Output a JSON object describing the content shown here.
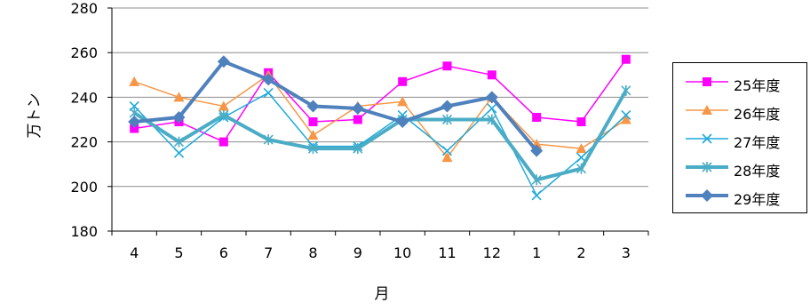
{
  "chart_data": {
    "type": "line",
    "title": "",
    "xlabel": "月",
    "ylabel": "万トン",
    "categories": [
      "4",
      "5",
      "6",
      "7",
      "8",
      "9",
      "10",
      "11",
      "12",
      "1",
      "2",
      "3"
    ],
    "ylim": [
      180,
      280
    ],
    "yticks": [
      180,
      200,
      220,
      240,
      260,
      280
    ],
    "grid": "horizontal",
    "legend_position": "right",
    "series": [
      {
        "name": "25年度",
        "color": "#ff00ff",
        "marker": "square",
        "width": 1.5,
        "values": [
          226,
          229,
          220,
          251,
          229,
          230,
          247,
          254,
          250,
          231,
          229,
          257
        ]
      },
      {
        "name": "26年度",
        "color": "#f79646",
        "marker": "triangle",
        "width": 1.5,
        "values": [
          247,
          240,
          236,
          250,
          223,
          236,
          238,
          213,
          240,
          219,
          217,
          230
        ]
      },
      {
        "name": "27年度",
        "color": "#1fa9dc",
        "marker": "x",
        "width": 1.5,
        "values": [
          236,
          215,
          231,
          242,
          218,
          218,
          232,
          216,
          235,
          196,
          213,
          232
        ]
      },
      {
        "name": "28年度",
        "color": "#4bacc6",
        "marker": "star",
        "width": 4,
        "values": [
          233,
          220,
          232,
          221,
          217,
          217,
          230,
          230,
          230,
          203,
          208,
          243
        ]
      },
      {
        "name": "29年度",
        "color": "#4f81bd",
        "marker": "diamond",
        "width": 4,
        "values": [
          229,
          231,
          256,
          248,
          236,
          235,
          229,
          236,
          240,
          216,
          null,
          null
        ]
      }
    ]
  }
}
